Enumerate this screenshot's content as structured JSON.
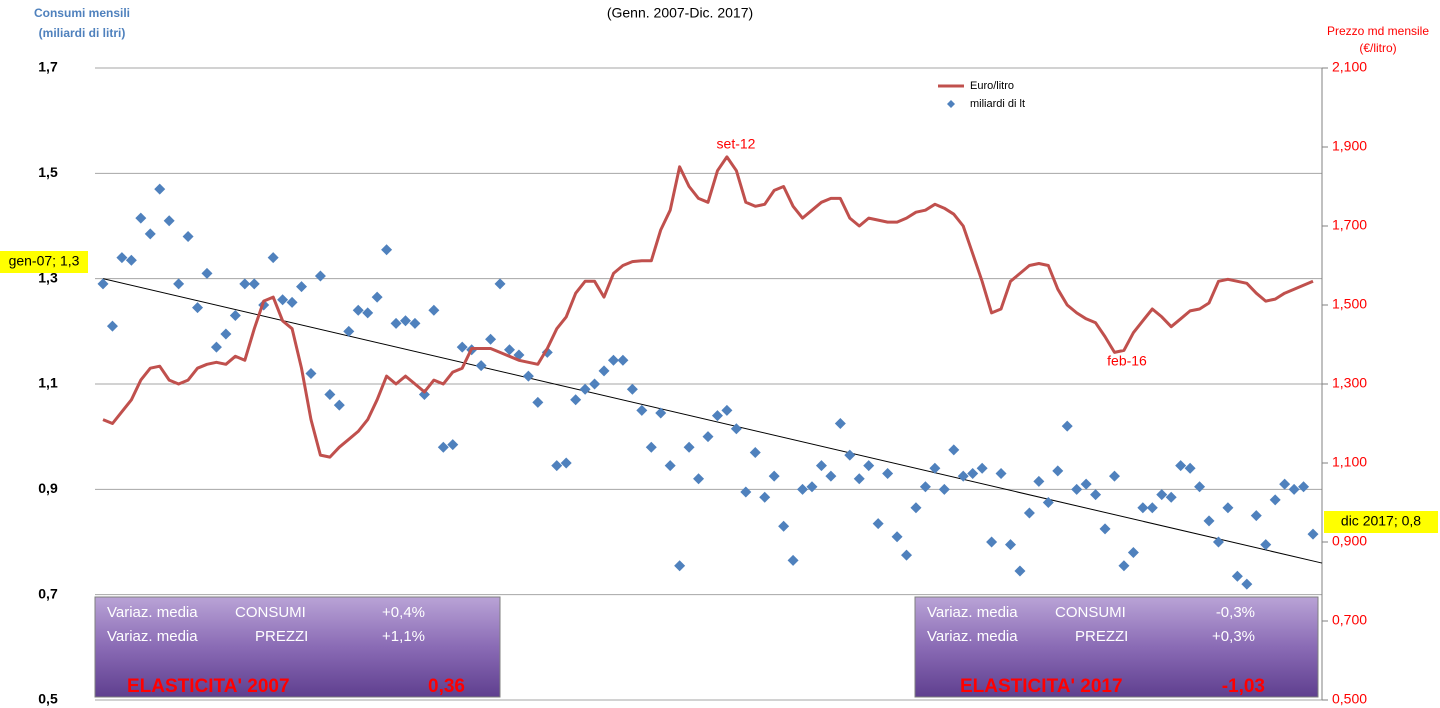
{
  "chart_data": {
    "type": "combo",
    "subtitle": "(Genn. 2007-Dic. 2017)",
    "y_label": [
      "Consumi mensili",
      "(miliardi di litri)"
    ],
    "y2_label": [
      "Prezzo md mensile",
      "(€/litro)"
    ],
    "ylim": [
      0.5,
      1.7
    ],
    "yticks": [
      {
        "value": 0.5,
        "label": "0,5"
      },
      {
        "value": 0.7,
        "label": "0,7"
      },
      {
        "value": 0.9,
        "label": "0,9"
      },
      {
        "value": 1.1,
        "label": "1,1"
      },
      {
        "value": 1.3,
        "label": "1,3"
      },
      {
        "value": 1.5,
        "label": "1,5"
      },
      {
        "value": 1.7,
        "label": "1,7"
      }
    ],
    "y2lim": [
      0.5,
      2.1
    ],
    "y2ticks": [
      {
        "value": 0.5,
        "label": "0,500"
      },
      {
        "value": 0.7,
        "label": "0,700"
      },
      {
        "value": 0.9,
        "label": "0,900"
      },
      {
        "value": 1.1,
        "label": "1,100"
      },
      {
        "value": 1.3,
        "label": "1,300"
      },
      {
        "value": 1.5,
        "label": "1,500"
      },
      {
        "value": 1.7,
        "label": "1,700"
      },
      {
        "value": 1.9,
        "label": "1,900"
      },
      {
        "value": 2.1,
        "label": "2,100"
      }
    ],
    "grid": true,
    "categories": [
      null,
      null,
      null,
      null,
      null,
      null,
      null,
      null,
      null,
      null,
      null,
      null,
      null,
      null,
      null,
      null,
      null,
      null,
      null,
      null,
      null,
      null,
      null,
      null,
      null,
      null,
      null,
      null,
      null,
      null,
      null,
      null,
      null,
      null,
      null,
      null,
      null,
      null,
      null,
      null,
      null,
      null,
      null,
      null,
      null,
      null,
      null,
      null,
      null,
      null,
      null,
      null,
      null,
      null,
      null,
      null,
      null,
      null,
      null,
      null,
      null,
      null,
      null,
      null,
      null,
      null,
      null,
      null,
      null,
      null,
      null,
      null,
      null,
      null,
      null,
      null,
      null,
      null,
      null,
      null,
      null,
      null,
      null,
      null,
      null,
      null,
      null,
      null,
      null,
      null,
      null,
      null,
      null,
      null,
      null,
      null,
      null,
      null,
      null,
      null,
      null,
      null,
      null,
      null,
      null,
      null,
      null,
      null,
      null,
      null,
      null,
      null,
      null,
      null,
      null,
      null,
      null,
      null,
      null,
      null,
      null,
      null,
      null,
      null,
      null,
      null,
      null,
      null,
      null
    ],
    "series": [
      {
        "name": "Euro/litro",
        "type": "line",
        "axis": "y2",
        "color": "#c0504d",
        "values": [
          1.21,
          1.2,
          1.23,
          1.26,
          1.31,
          1.34,
          1.345,
          1.31,
          1.3,
          1.31,
          1.34,
          1.35,
          1.355,
          1.35,
          1.37,
          1.36,
          1.44,
          1.51,
          1.52,
          1.46,
          1.44,
          1.34,
          1.21,
          1.12,
          1.115,
          1.14,
          1.16,
          1.18,
          1.21,
          1.26,
          1.32,
          1.3,
          1.32,
          1.3,
          1.28,
          1.31,
          1.3,
          1.33,
          1.34,
          1.39,
          1.39,
          1.39,
          1.38,
          1.37,
          1.36,
          1.355,
          1.35,
          1.39,
          1.44,
          1.47,
          1.53,
          1.56,
          1.56,
          1.52,
          1.58,
          1.6,
          1.61,
          1.612,
          1.612,
          1.69,
          1.74,
          1.85,
          1.8,
          1.77,
          1.76,
          1.84,
          1.875,
          1.84,
          1.76,
          1.75,
          1.755,
          1.79,
          1.8,
          1.75,
          1.72,
          1.74,
          1.76,
          1.77,
          1.77,
          1.72,
          1.7,
          1.72,
          1.715,
          1.71,
          1.71,
          1.72,
          1.735,
          1.74,
          1.755,
          1.745,
          1.73,
          1.7,
          1.63,
          1.56,
          1.48,
          1.49,
          1.56,
          1.58,
          1.6,
          1.605,
          1.6,
          1.54,
          1.5,
          1.48,
          1.465,
          1.455,
          1.42,
          1.38,
          1.385,
          1.43,
          1.46,
          1.49,
          1.47,
          1.445,
          1.465,
          1.485,
          1.49,
          1.505,
          1.56,
          1.565,
          1.56,
          1.555,
          1.53,
          1.51,
          1.515,
          1.53,
          1.54,
          1.55,
          1.56
        ]
      },
      {
        "name": "miliardi di lt",
        "type": "scatter",
        "color": "#4f81bd",
        "values": [
          1.29,
          1.21,
          1.34,
          1.335,
          1.415,
          1.385,
          1.47,
          1.41,
          1.29,
          1.38,
          1.245,
          1.31,
          1.17,
          1.195,
          1.23,
          1.29,
          1.29,
          1.25,
          1.34,
          1.26,
          1.255,
          1.285,
          1.12,
          1.305,
          1.08,
          1.06,
          1.2,
          1.24,
          1.235,
          1.265,
          1.355,
          1.215,
          1.22,
          1.215,
          1.08,
          1.24,
          0.98,
          0.985,
          1.17,
          1.165,
          1.135,
          1.185,
          1.29,
          1.165,
          1.155,
          1.115,
          1.065,
          1.16,
          0.945,
          0.95,
          1.07,
          1.09,
          1.1,
          1.125,
          1.145,
          1.145,
          1.09,
          1.05,
          0.98,
          1.045,
          0.945,
          0.755,
          0.98,
          0.92,
          1.0,
          1.04,
          1.05,
          1.015,
          0.895,
          0.97,
          0.885,
          0.925,
          0.83,
          0.765,
          0.9,
          0.905,
          0.945,
          0.925,
          1.025,
          0.965,
          0.92,
          0.945,
          0.835,
          0.93,
          0.81,
          0.775,
          0.865,
          0.905,
          0.94,
          0.9,
          0.975,
          0.925,
          0.93,
          0.94,
          0.8,
          0.93,
          0.795,
          0.745,
          0.855,
          0.915,
          0.875,
          0.935,
          1.02,
          0.9,
          0.91,
          0.89,
          0.825,
          0.925,
          0.755,
          0.78,
          0.865,
          0.865,
          0.89,
          0.885,
          0.945,
          0.94,
          0.905,
          0.84,
          0.8,
          0.865,
          0.735,
          0.72,
          0.85,
          0.795,
          0.88,
          0.91,
          0.9,
          0.905,
          0.815
        ]
      }
    ],
    "trendline": {
      "values": [
        1.3,
        0.76
      ],
      "color": "#000000"
    },
    "annotations": [
      "set-12",
      "feb-16",
      "gen-07; 1,3",
      "dic 2017; 0,8"
    ],
    "boxes": [
      {
        "rows": [
          [
            "Variaz. media",
            "CONSUMI",
            "+0,4%"
          ],
          [
            "Variaz. media",
            "PREZZI",
            "+1,1%"
          ]
        ],
        "elasticity": [
          "ELASTICITA' 2007",
          "0,36"
        ]
      },
      {
        "rows": [
          [
            "Variaz. media",
            "CONSUMI",
            "-0,3%"
          ],
          [
            "Variaz. media",
            "PREZZI",
            "+0,3%"
          ]
        ],
        "elasticity": [
          "ELASTICITA' 2017",
          "-1,03"
        ]
      }
    ]
  }
}
